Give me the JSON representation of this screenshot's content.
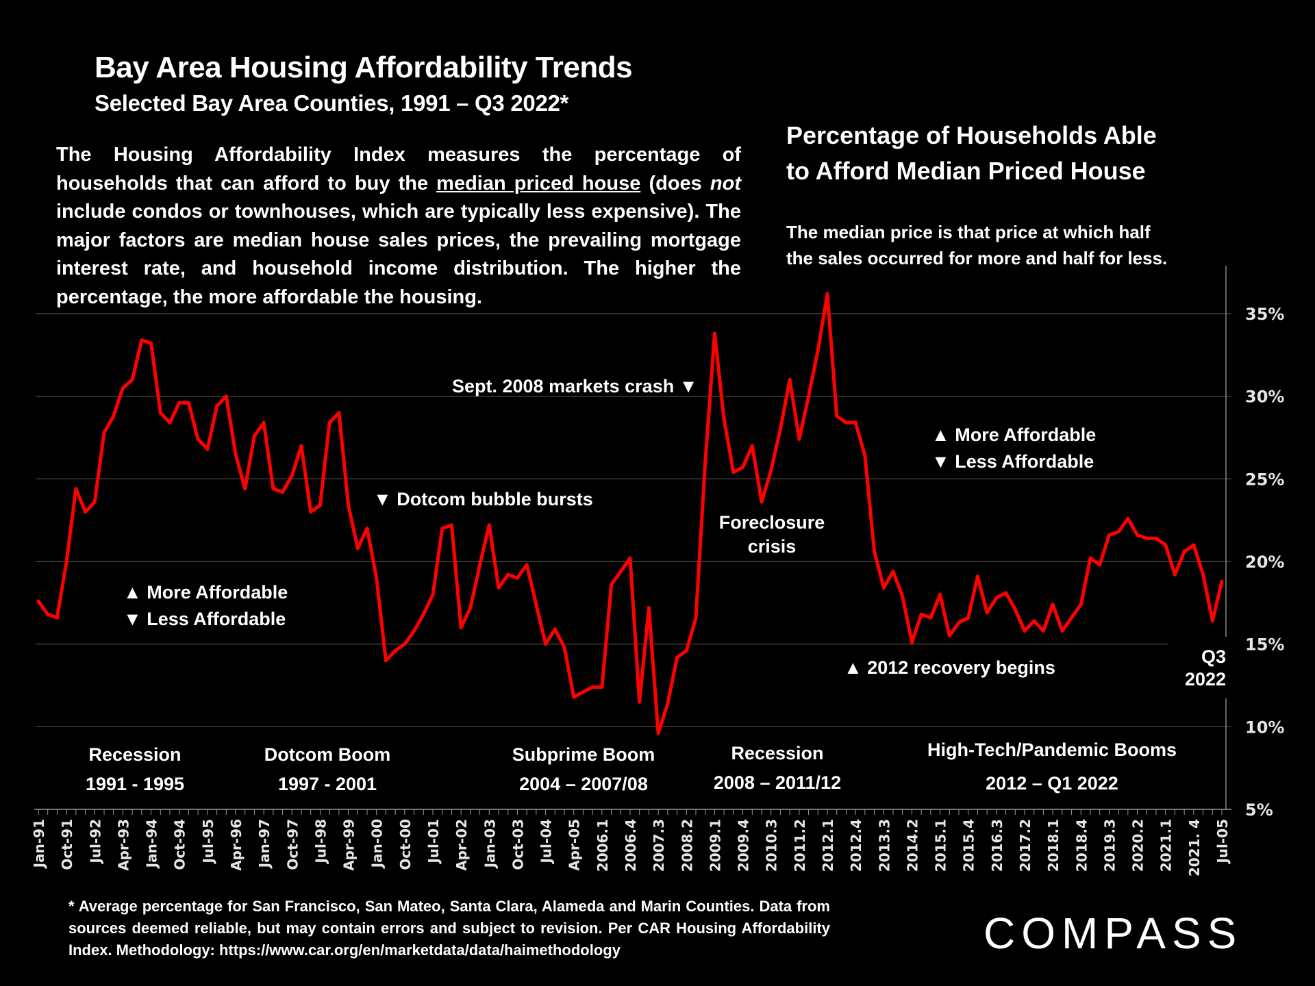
{
  "header": {
    "title": "Bay Area Housing Affordability Trends",
    "subtitle": "Selected Bay Area Counties, 1991 – Q3 2022*"
  },
  "description": {
    "part1": "The Housing Affordability Index measures the percentage of households that can afford to buy the ",
    "underlined": "median priced house",
    "part2": " (does ",
    "italic": "not",
    "part3": " include condos or townhouses, which are typically less expensive). The major factors are median house sales prices, the prevailing mortgage interest rate, and household income distribution. The higher the percentage, the more affordable the housing."
  },
  "right_panel": {
    "title_line1": "Percentage of Households Able",
    "title_line2": "to Afford Median Priced House",
    "note_line1": "The median price is that price at which half",
    "note_line2": "the sales occurred for more and half for less."
  },
  "annotations": {
    "more_affordable": "▲ More Affordable",
    "less_affordable": "▼ Less Affordable",
    "dotcom_bursts": "▼ Dotcom bubble bursts",
    "sept_2008": "Sept. 2008 markets crash ▼",
    "foreclosure_line1": "Foreclosure",
    "foreclosure_line2": "crisis",
    "recovery_2012": "▲ 2012 recovery begins",
    "q3_line1": "Q3",
    "q3_line2": "2022"
  },
  "eras": [
    {
      "name": "Recession",
      "years": "1991 - 1995"
    },
    {
      "name": "Dotcom Boom",
      "years": "1997 - 2001"
    },
    {
      "name": "Subprime Boom",
      "years": "2004 – 2007/08"
    },
    {
      "name": "Recession",
      "years": "2008 – 2011/12"
    },
    {
      "name": "High-Tech/Pandemic Booms",
      "years": "2012 – Q1 2022"
    }
  ],
  "footer": {
    "text": "* Average percentage for San Francisco, San Mateo, Santa Clara, Alameda and Marin Counties. Data from sources deemed reliable, but may contain errors and subject to revision. Per CAR Housing Affordability Index. Methodology: https://www.car.org/en/marketdata/data/haimethodology",
    "logo": "COMPASS"
  },
  "colors": {
    "background": "#000000",
    "line": "#ff0000",
    "text": "#ffffff",
    "grid": "#555555"
  },
  "chart_data": {
    "type": "line",
    "title": "Percentage of Households Able to Afford Median Priced House",
    "xlabel": "",
    "ylabel": "",
    "ylim": [
      5,
      35
    ],
    "y_ticks": [
      "5%",
      "10%",
      "15%",
      "20%",
      "25%",
      "30%",
      "35%"
    ],
    "y_tick_values": [
      5,
      10,
      15,
      20,
      25,
      30,
      35
    ],
    "grid": true,
    "y_axis_side": "right",
    "x_tick_labels": [
      "Jan-91",
      "Oct-91",
      "Jul-92",
      "Apr-93",
      "Jan-94",
      "Oct-94",
      "Jul-95",
      "Apr-96",
      "Jan-97",
      "Oct-97",
      "Jul-98",
      "Apr-99",
      "Jan-00",
      "Oct-00",
      "Jul-01",
      "Apr-02",
      "Jan-03",
      "Oct-03",
      "Jul-04",
      "Apr-05",
      "2006.1",
      "2006.4",
      "2007.3",
      "2008.2",
      "2009.1",
      "2009.4",
      "2010.3",
      "2011.2",
      "2012.1",
      "2012.4",
      "2013.3",
      "2014.2",
      "2015.1",
      "2015.4",
      "2016.3",
      "2017.2",
      "2018.1",
      "2018.4",
      "2019.3",
      "2020.2",
      "2021.1",
      "2021. 4",
      "Jul-05"
    ],
    "series": [
      {
        "name": "Housing Affordability Index (%)",
        "values": [
          17.6,
          16.8,
          16.6,
          20,
          24.4,
          23,
          23.6,
          27.8,
          28.8,
          30.5,
          31,
          33.4,
          33.2,
          29,
          28.4,
          29.6,
          29.6,
          27.4,
          26.8,
          29.4,
          30,
          26.5,
          24.4,
          27.6,
          28.4,
          24.4,
          24.2,
          25.2,
          27,
          23,
          23.4,
          28.4,
          29,
          23.4,
          20.8,
          22,
          19,
          14,
          14.6,
          15,
          15.8,
          16.8,
          18,
          22,
          22.2,
          16,
          17.2,
          19.8,
          22.2,
          18.4,
          19.2,
          19,
          19.8,
          17.4,
          15,
          15.9,
          14.8,
          11.8,
          12.1,
          12.4,
          12.4,
          18.6,
          19.4,
          20.2,
          11.5,
          17.2,
          9.6,
          11.4,
          14.2,
          14.6,
          16.6,
          26,
          33.8,
          28.6,
          25.4,
          25.7,
          27,
          23.6,
          25.5,
          28,
          31,
          27.4,
          30,
          32.8,
          36.2,
          28.8,
          28.4,
          28.4,
          26.4,
          20.6,
          18.4,
          19.4,
          17.9,
          15.1,
          16.8,
          16.6,
          18,
          15.5,
          16.3,
          16.6,
          19.1,
          16.9,
          17.8,
          18.1,
          17.1,
          15.8,
          16.4,
          15.8,
          17.4,
          15.8,
          16.6,
          17.4,
          20.2,
          19.8,
          21.6,
          21.8,
          22.6,
          21.6,
          21.4,
          21.4,
          21,
          19.2,
          20.6,
          21,
          19.2,
          16.4,
          18.8
        ]
      }
    ]
  }
}
